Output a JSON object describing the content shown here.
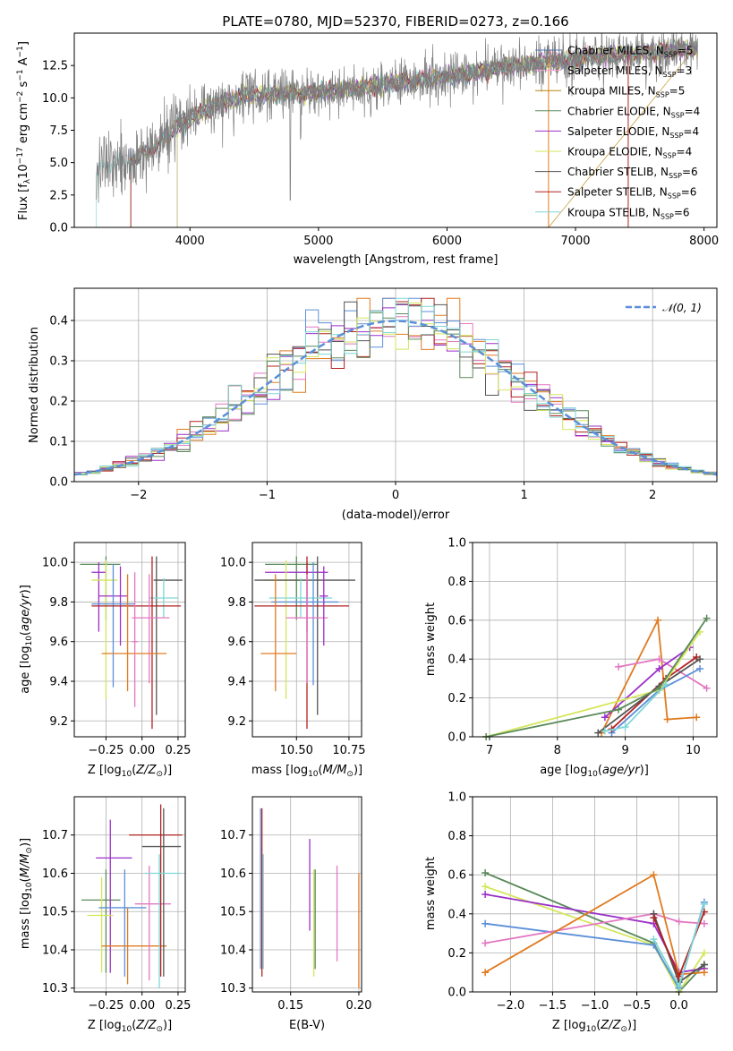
{
  "chart_data": [
    {
      "type": "line",
      "title": "PLATE=0780, MJD=52370, FIBERID=0273, z=0.166",
      "xlabel": "wavelength [Angstrom, rest frame]",
      "ylabel": "Flux [f_λ10^-17 erg cm^-2 s^-1 A^-1]",
      "xlim": [
        3100,
        8100
      ],
      "ylim": [
        0,
        15
      ],
      "xticks": [
        "4000",
        "5000",
        "6000",
        "7000",
        "8000"
      ],
      "yticks": [
        "0.0",
        "2.5",
        "5.0",
        "7.5",
        "10.0",
        "12.5"
      ],
      "legend_position": "top-right",
      "spectrum_anchor_x": [
        3270,
        3400,
        3550,
        3750,
        3900,
        4100,
        4400,
        4800,
        5200,
        5600,
        6000,
        6400,
        6800,
        7200,
        7600,
        7900
      ],
      "spectrum_anchor_y": [
        4.7,
        4.9,
        5.2,
        6.4,
        7.8,
        9.0,
        10.2,
        10.3,
        10.6,
        11.2,
        11.6,
        12.3,
        12.8,
        13.2,
        13.5,
        13.8
      ],
      "series": [
        {
          "name": "Chabrier MILES, N_SSP=5",
          "color": "#4c72b0",
          "start": 3540
        },
        {
          "name": "Salpeter MILES, N_SSP=3",
          "color": "#ff9ed7",
          "start": 3540
        },
        {
          "name": "Kroupa MILES, N_SSP=5",
          "color": "#b8860b",
          "start": 3540
        },
        {
          "name": "Chabrier ELODIE, N_SSP=4",
          "color": "#5a8a5a",
          "start": 3900
        },
        {
          "name": "Salpeter ELODIE, N_SSP=4",
          "color": "#9b30c8",
          "start": 3900
        },
        {
          "name": "Kroupa ELODIE, N_SSP=4",
          "color": "#d4e65a",
          "start": 3900
        },
        {
          "name": "Chabrier STELIB, N_SSP=6",
          "color": "#555555",
          "start": 3540
        },
        {
          "name": "Salpeter STELIB, N_SSP=6",
          "color": "#b22222",
          "start": 3540
        },
        {
          "name": "Kroupa STELIB, N_SSP=6",
          "color": "#7fd6d6",
          "start": 3270
        }
      ]
    },
    {
      "type": "bar",
      "xlabel": "(data-model)/error",
      "ylabel": "Normed distribution",
      "xlim": [
        -2.5,
        2.5
      ],
      "ylim": [
        0,
        0.48
      ],
      "xticks": [
        "−2",
        "−1",
        "0",
        "1",
        "2"
      ],
      "yticks": [
        "0.0",
        "0.1",
        "0.2",
        "0.3",
        "0.4"
      ],
      "legend_position": "top-right",
      "reference_curve": {
        "name": "𝒩(0, 1)",
        "color": "#5b8fd9",
        "mean": 0,
        "sigma": 1
      },
      "bin_width": 0.1,
      "bin_start": -2.5
    },
    {
      "type": "scatter",
      "xlabel": "Z [log10(Z/Z⊙)]",
      "ylabel": "age  [log10(age/yr)]",
      "xlim": [
        -0.47,
        0.3
      ],
      "ylim": [
        9.12,
        10.1
      ],
      "xticks": [
        "−0.25",
        "0.00",
        "0.25"
      ],
      "yticks": [
        "9.2",
        "9.4",
        "9.6",
        "9.8",
        "10.0"
      ],
      "points": [
        {
          "x": -0.25,
          "y": 9.99,
          "xerr": [
            0.18,
            0.1
          ],
          "yerr": [
            0.28,
            0.04
          ],
          "color": "#5a8a5a"
        },
        {
          "x": -0.3,
          "y": 9.95,
          "xerr": [
            0.05,
            0.05
          ],
          "yerr": [
            0.3,
            0.05
          ],
          "color": "#9b30c8"
        },
        {
          "x": -0.25,
          "y": 9.91,
          "xerr": [
            0.1,
            0.08
          ],
          "yerr": [
            0.6,
            0.1
          ],
          "color": "#d4e65a"
        },
        {
          "x": -0.15,
          "y": 9.83,
          "xerr": [
            0.15,
            0.05
          ],
          "yerr": [
            0.25,
            0.15
          ],
          "color": "#9b30c8"
        },
        {
          "x": -0.2,
          "y": 9.79,
          "xerr": [
            0.15,
            0.15
          ],
          "yerr": [
            0.42,
            0.2
          ],
          "color": "#5b8fd9"
        },
        {
          "x": 0.1,
          "y": 9.91,
          "xerr": [
            0.02,
            0.18
          ],
          "yerr": [
            0.68,
            0.12
          ],
          "color": "#555555"
        },
        {
          "x": 0.15,
          "y": 9.82,
          "xerr": [
            0.1,
            0.1
          ],
          "yerr": [
            0.1,
            0.1
          ],
          "color": "#7fd6d6"
        },
        {
          "x": 0.07,
          "y": 9.78,
          "xerr": [
            0.42,
            0.2
          ],
          "yerr": [
            0.62,
            0.25
          ],
          "color": "#b22222"
        },
        {
          "x": 0.05,
          "y": 9.72,
          "xerr": [
            0.12,
            0.14
          ],
          "yerr": [
            0.33,
            0.22
          ],
          "color": "#e377c2"
        },
        {
          "x": -0.1,
          "y": 9.54,
          "xerr": [
            0.18,
            0.27
          ],
          "yerr": [
            0.19,
            0.4
          ],
          "color": "#e07b20"
        },
        {
          "x": -0.05,
          "y": 9.6,
          "xerr": [
            0.02,
            0.02
          ],
          "yerr": [
            0.33,
            0.35
          ],
          "color": "#e377c2"
        }
      ]
    },
    {
      "type": "scatter",
      "xlabel": "mass [log10(M/M⊙)]",
      "ylabel": "",
      "xlim": [
        10.29,
        10.81
      ],
      "ylim": [
        9.12,
        10.1
      ],
      "xticks": [
        "10.50",
        "10.75"
      ],
      "yticks": [
        "9.2",
        "9.4",
        "9.6",
        "9.8",
        "10.0"
      ],
      "points": [
        {
          "x": 10.5,
          "y": 9.99,
          "xerr": [
            0.15,
            0.1
          ],
          "yerr": [
            0.28,
            0.04
          ],
          "color": "#5a8a5a"
        },
        {
          "x": 10.55,
          "y": 9.95,
          "xerr": [
            0.2,
            0.1
          ],
          "yerr": [
            0.3,
            0.05
          ],
          "color": "#9b30c8"
        },
        {
          "x": 10.45,
          "y": 9.91,
          "xerr": [
            0.1,
            0.1
          ],
          "yerr": [
            0.6,
            0.1
          ],
          "color": "#d4e65a"
        },
        {
          "x": 10.6,
          "y": 9.91,
          "xerr": [
            0.3,
            0.18
          ],
          "yerr": [
            0.68,
            0.12
          ],
          "color": "#555555"
        },
        {
          "x": 10.52,
          "y": 9.82,
          "xerr": [
            0.15,
            0.15
          ],
          "yerr": [
            0.1,
            0.1
          ],
          "color": "#7fd6d6"
        },
        {
          "x": 10.55,
          "y": 9.78,
          "xerr": [
            0.25,
            0.2
          ],
          "yerr": [
            0.62,
            0.25
          ],
          "color": "#b22222"
        },
        {
          "x": 10.58,
          "y": 9.8,
          "xerr": [
            0.2,
            0.12
          ],
          "yerr": [
            0.42,
            0.2
          ],
          "color": "#5b8fd9"
        },
        {
          "x": 10.55,
          "y": 9.72,
          "xerr": [
            0.1,
            0.1
          ],
          "yerr": [
            0.33,
            0.22
          ],
          "color": "#e377c2"
        },
        {
          "x": 10.4,
          "y": 9.54,
          "xerr": [
            0.07,
            0.1
          ],
          "yerr": [
            0.19,
            0.4
          ],
          "color": "#e07b20"
        },
        {
          "x": 10.63,
          "y": 9.83,
          "xerr": [
            0.02,
            0.02
          ],
          "yerr": [
            0.25,
            0.15
          ],
          "color": "#9b30c8"
        }
      ]
    },
    {
      "type": "line",
      "xlabel": "age  [log10(age/yr)]",
      "ylabel": "mass weight",
      "xlim": [
        6.75,
        10.35
      ],
      "ylim": [
        0,
        1
      ],
      "xticks": [
        "7",
        "8",
        "9",
        "10"
      ],
      "yticks": [
        "0.0",
        "0.2",
        "0.4",
        "0.6",
        "0.8",
        "1.0"
      ],
      "grid": true,
      "series": [
        {
          "color": "#e07b20",
          "x": [
            8.65,
            9.48,
            9.62,
            10.05
          ],
          "y": [
            0.02,
            0.6,
            0.09,
            0.1
          ]
        },
        {
          "color": "#e377c2",
          "x": [
            8.9,
            9.5,
            10.2
          ],
          "y": [
            0.36,
            0.4,
            0.25
          ]
        },
        {
          "color": "#5b8fd9",
          "x": [
            8.8,
            9.5,
            10.1
          ],
          "y": [
            0.02,
            0.24,
            0.35
          ]
        },
        {
          "color": "#9b30c8",
          "x": [
            8.7,
            9.5,
            9.95
          ],
          "y": [
            0.1,
            0.35,
            0.46
          ]
        },
        {
          "color": "#b22222",
          "x": [
            8.8,
            9.6,
            10.05
          ],
          "y": [
            0.04,
            0.3,
            0.41
          ]
        },
        {
          "color": "#555555",
          "x": [
            8.6,
            9.5,
            10.1
          ],
          "y": [
            0.02,
            0.26,
            0.4
          ]
        },
        {
          "color": "#d4e65a",
          "x": [
            6.95,
            9.5,
            10.1
          ],
          "y": [
            0.0,
            0.24,
            0.54
          ]
        },
        {
          "color": "#5a8a5a",
          "x": [
            6.95,
            8.9,
            9.5,
            10.2
          ],
          "y": [
            0.0,
            0.14,
            0.25,
            0.61
          ]
        },
        {
          "color": "#7fd6d6",
          "x": [
            8.7,
            9.0,
            9.6
          ],
          "y": [
            0.03,
            0.05,
            0.27
          ]
        }
      ]
    },
    {
      "type": "scatter",
      "xlabel": "Z [log10(Z/Z⊙)]",
      "ylabel": "mass [log10(M/M⊙)]",
      "xlim": [
        -0.47,
        0.3
      ],
      "ylim": [
        10.29,
        10.8
      ],
      "xticks": [
        "−0.25",
        "0.00",
        "0.25"
      ],
      "yticks": [
        "10.3",
        "10.4",
        "10.5",
        "10.6",
        "10.7"
      ],
      "points": [
        {
          "x": -0.25,
          "y": 10.53,
          "xerr": [
            0.17,
            0.1
          ],
          "yerr": [
            0.19,
            0.08
          ],
          "color": "#5a8a5a"
        },
        {
          "x": -0.22,
          "y": 10.64,
          "xerr": [
            0.1,
            0.15
          ],
          "yerr": [
            0.3,
            0.1
          ],
          "color": "#9b30c8"
        },
        {
          "x": -0.28,
          "y": 10.49,
          "xerr": [
            0.1,
            0.08
          ],
          "yerr": [
            0.15,
            0.1
          ],
          "color": "#d4e65a"
        },
        {
          "x": -0.12,
          "y": 10.51,
          "xerr": [
            0.18,
            0.15
          ],
          "yerr": [
            0.18,
            0.1
          ],
          "color": "#5b8fd9"
        },
        {
          "x": -0.1,
          "y": 10.41,
          "xerr": [
            0.18,
            0.27
          ],
          "yerr": [
            0.1,
            0.1
          ],
          "color": "#e07b20"
        },
        {
          "x": 0.05,
          "y": 10.52,
          "xerr": [
            0.1,
            0.15
          ],
          "yerr": [
            0.2,
            0.1
          ],
          "color": "#e377c2"
        },
        {
          "x": 0.13,
          "y": 10.7,
          "xerr": [
            0.22,
            0.15
          ],
          "yerr": [
            0.37,
            0.08
          ],
          "color": "#b22222"
        },
        {
          "x": 0.15,
          "y": 10.67,
          "xerr": [
            0.15,
            0.12
          ],
          "yerr": [
            0.34,
            0.1
          ],
          "color": "#555555"
        },
        {
          "x": 0.12,
          "y": 10.6,
          "xerr": [
            0.1,
            0.15
          ],
          "yerr": [
            0.3,
            0.05
          ],
          "color": "#7fd6d6"
        }
      ]
    },
    {
      "type": "scatter",
      "xlabel": "E(B-V)",
      "ylabel": "",
      "xlim": [
        0.122,
        0.202
      ],
      "ylim": [
        10.29,
        10.8
      ],
      "xticks": [
        "0.15",
        "0.20"
      ],
      "yticks": [
        "10.3",
        "10.4",
        "10.5",
        "10.6",
        "10.7"
      ],
      "points": [
        {
          "x": 0.128,
          "y": 10.55,
          "yerr": [
            0.2,
            0.22
          ],
          "color": "#5b8fd9"
        },
        {
          "x": 0.129,
          "y": 10.55,
          "yerr": [
            0.22,
            0.22
          ],
          "color": "#b22222"
        },
        {
          "x": 0.13,
          "y": 10.55,
          "yerr": [
            0.2,
            0.1
          ],
          "color": "#7fd6d6"
        },
        {
          "x": 0.164,
          "y": 10.57,
          "yerr": [
            0.12,
            0.12
          ],
          "color": "#9b30c8"
        },
        {
          "x": 0.167,
          "y": 10.47,
          "yerr": [
            0.14,
            0.14
          ],
          "color": "#d4e65a"
        },
        {
          "x": 0.168,
          "y": 10.55,
          "yerr": [
            0.2,
            0.06
          ],
          "color": "#5a8a5a"
        },
        {
          "x": 0.184,
          "y": 10.5,
          "yerr": [
            0.13,
            0.12
          ],
          "color": "#e377c2"
        },
        {
          "x": 0.2,
          "y": 10.45,
          "yerr": [
            0.15,
            0.15
          ],
          "color": "#e07b20"
        }
      ]
    },
    {
      "type": "line",
      "xlabel": "Z [log10(Z/Z⊙)]",
      "ylabel": "mass weight",
      "xlim": [
        -2.45,
        0.45
      ],
      "ylim": [
        0,
        1
      ],
      "xticks": [
        "−2.0",
        "−1.5",
        "−1.0",
        "−0.5",
        "0.0"
      ],
      "yticks": [
        "0.0",
        "0.2",
        "0.4",
        "0.6",
        "0.8",
        "1.0"
      ],
      "grid": true,
      "series": [
        {
          "color": "#5a8a5a",
          "x": [
            -2.3,
            -0.3,
            0.0,
            0.3
          ],
          "y": [
            0.61,
            0.25,
            0.0,
            0.14
          ]
        },
        {
          "color": "#d4e65a",
          "x": [
            -2.3,
            -0.3,
            0.0,
            0.3
          ],
          "y": [
            0.54,
            0.24,
            0.0,
            0.2
          ]
        },
        {
          "color": "#9b30c8",
          "x": [
            -2.3,
            -0.3,
            0.0,
            0.3
          ],
          "y": [
            0.5,
            0.35,
            0.1,
            0.12
          ]
        },
        {
          "color": "#5b8fd9",
          "x": [
            -2.3,
            -0.3,
            0.0,
            0.3
          ],
          "y": [
            0.35,
            0.24,
            0.02,
            0.46
          ]
        },
        {
          "color": "#e377c2",
          "x": [
            -2.3,
            -0.3,
            0.0,
            0.3
          ],
          "y": [
            0.25,
            0.4,
            0.36,
            0.35
          ]
        },
        {
          "color": "#e07b20",
          "x": [
            -2.3,
            -0.3,
            0.0,
            0.3
          ],
          "y": [
            0.1,
            0.6,
            0.09,
            0.1
          ]
        },
        {
          "color": "#555555",
          "x": [
            -0.3,
            0.0,
            0.3
          ],
          "y": [
            0.4,
            0.05,
            0.14
          ]
        },
        {
          "color": "#b22222",
          "x": [
            -0.3,
            0.0,
            0.3
          ],
          "y": [
            0.38,
            0.08,
            0.41
          ]
        },
        {
          "color": "#7fd6d6",
          "x": [
            -0.3,
            0.0,
            0.3
          ],
          "y": [
            0.27,
            0.03,
            0.45
          ]
        }
      ]
    }
  ]
}
